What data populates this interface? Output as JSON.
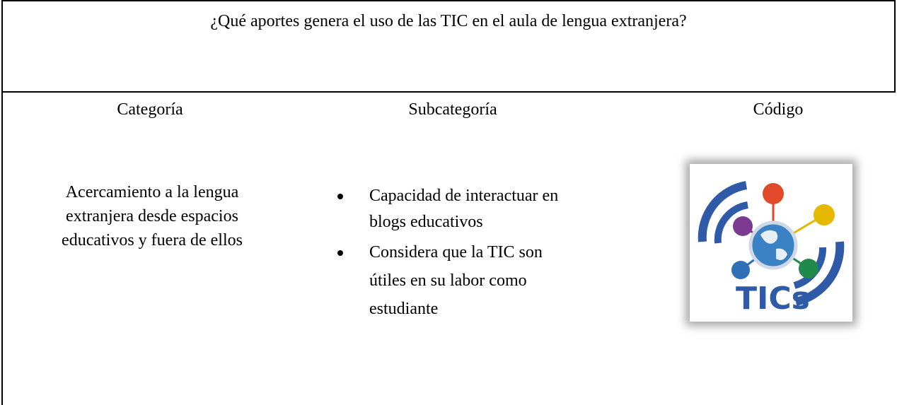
{
  "title": "¿Qué aportes genera el uso de las TIC en el aula de lengua extranjera?",
  "headers": [
    "Categoría",
    "Subcategoría",
    "Código"
  ],
  "category_lines": [
    "Acercamiento a la lengua",
    "extranjera desde espacios",
    "educativos y fuera de ellos"
  ],
  "subcategories": [
    [
      "Capacidad de interactuar en",
      "blogs educativos"
    ],
    [
      "Considera que la TIC son",
      "útiles en su labor como",
      "estudiante"
    ]
  ],
  "logo_text": "TICs"
}
